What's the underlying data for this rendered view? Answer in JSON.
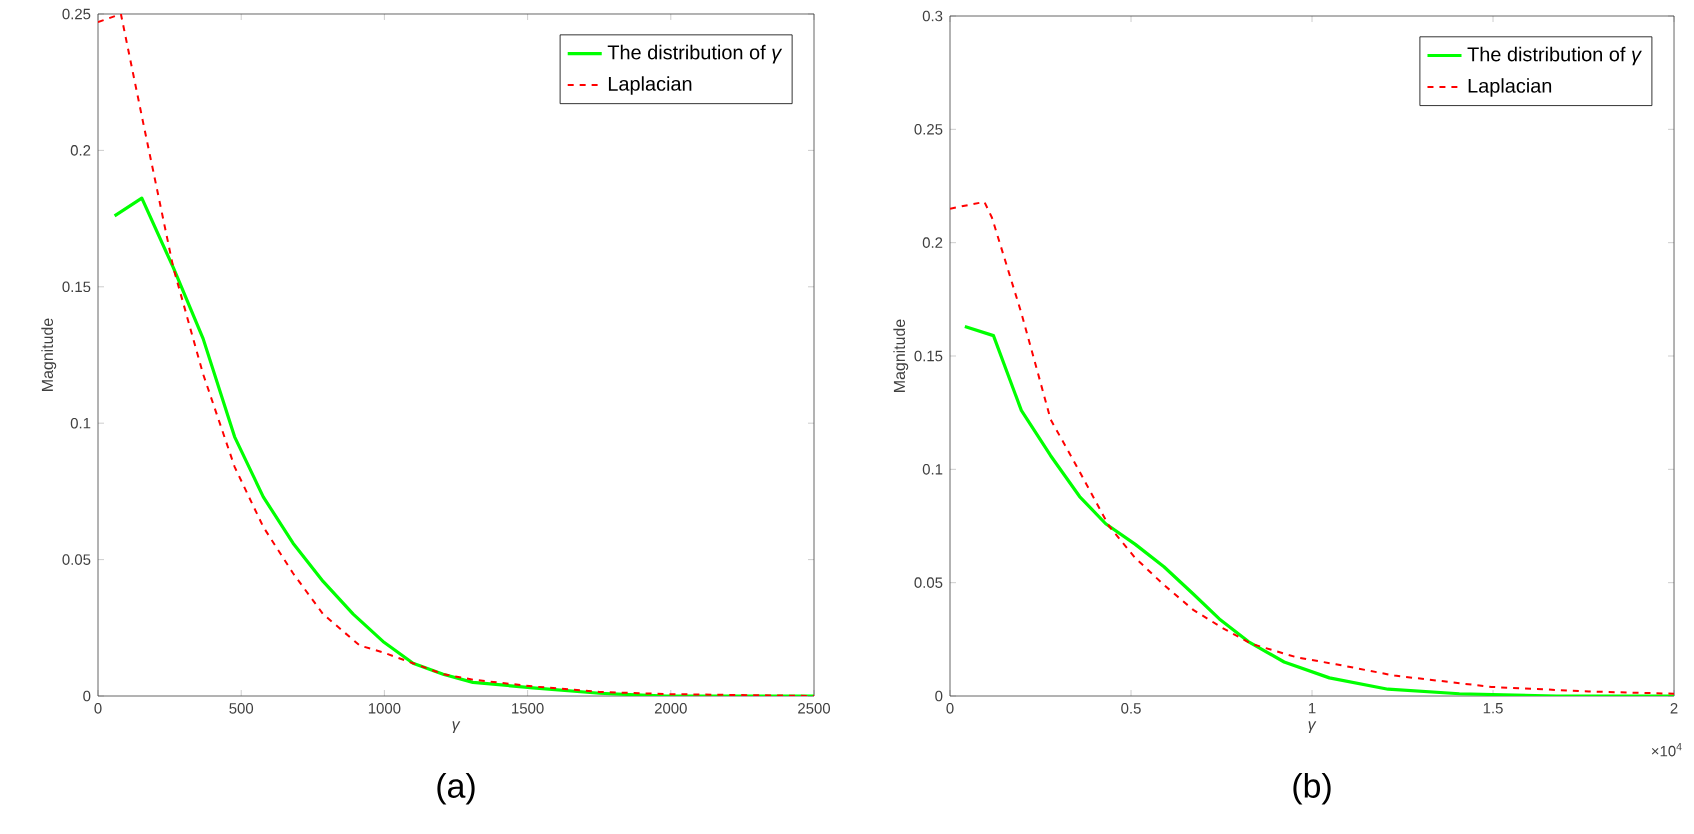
{
  "chart_data": [
    {
      "type": "line",
      "title": "(a)",
      "xlabel": "*γ*",
      "ylabel": "Magnitude",
      "xlim": [
        0,
        2500
      ],
      "ylim": [
        0,
        0.25
      ],
      "xticks": [
        0,
        500,
        1000,
        1500,
        2000,
        2500
      ],
      "yticks": [
        0,
        0.05,
        0.1,
        0.15,
        0.2,
        0.25
      ],
      "legend": "top right",
      "grid": false,
      "marker": "none",
      "series": [
        {
          "name": "The distribution of *γ*",
          "color": "#00ff00",
          "line_style": "solid",
          "x": [
            58,
            153,
            263,
            367,
            477,
            577,
            681,
            786,
            891,
            995,
            1100,
            1205,
            1309,
            1519,
            1751,
            1984,
            2500
          ],
          "values": [
            0.176,
            0.1825,
            0.157,
            0.131,
            0.095,
            0.073,
            0.056,
            0.042,
            0.03,
            0.02,
            0.012,
            0.008,
            0.005,
            0.003,
            0.001,
            0.0,
            0.0
          ]
        },
        {
          "name": "Laplacian",
          "color": "#ff0000",
          "line_style": "dashed",
          "x": [
            0,
            80,
            158,
            263,
            367,
            477,
            577,
            681,
            786,
            914,
            995,
            1100,
            1205,
            1309,
            1519,
            1751,
            1984,
            2500
          ],
          "values": [
            0.247,
            0.25,
            0.21,
            0.157,
            0.118,
            0.084,
            0.062,
            0.045,
            0.03,
            0.0185,
            0.016,
            0.012,
            0.008,
            0.006,
            0.0035,
            0.0015,
            0.0007,
            0.0
          ]
        }
      ]
    },
    {
      "type": "line",
      "title": "(b)",
      "xlabel": "*γ*",
      "ylabel": "Magnitude",
      "annotations": [
        "×10$^{4}$"
      ],
      "xlim": [
        0,
        2
      ],
      "ylim": [
        0,
        0.3
      ],
      "xticks": [
        0,
        0.5,
        1,
        1.5,
        2
      ],
      "yticks": [
        0,
        0.05,
        0.1,
        0.15,
        0.2,
        0.25,
        0.3
      ],
      "legend": "top right",
      "grid": false,
      "marker": "none",
      "series": [
        {
          "name": "The distribution of *γ*",
          "color": "#00ff00",
          "line_style": "solid",
          "x": [
            0.041,
            0.12,
            0.197,
            0.278,
            0.358,
            0.43,
            0.511,
            0.591,
            0.672,
            0.744,
            0.824,
            0.923,
            1.048,
            1.21,
            1.407,
            1.676,
            2.0
          ],
          "values": [
            0.163,
            0.159,
            0.126,
            0.106,
            0.088,
            0.076,
            0.067,
            0.057,
            0.045,
            0.034,
            0.024,
            0.015,
            0.008,
            0.003,
            0.001,
            0.0,
            0.0
          ]
        },
        {
          "name": "Laplacian",
          "color": "#ff0000",
          "line_style": "dashed",
          "x": [
            0,
            0.095,
            0.116,
            0.197,
            0.278,
            0.358,
            0.439,
            0.511,
            0.591,
            0.672,
            0.753,
            0.833,
            0.959,
            1.066,
            1.228,
            1.496,
            1.765,
            2.0
          ],
          "values": [
            0.215,
            0.218,
            0.211,
            0.169,
            0.122,
            0.099,
            0.075,
            0.061,
            0.049,
            0.038,
            0.03,
            0.023,
            0.017,
            0.014,
            0.009,
            0.004,
            0.002,
            0.001
          ]
        }
      ]
    }
  ]
}
